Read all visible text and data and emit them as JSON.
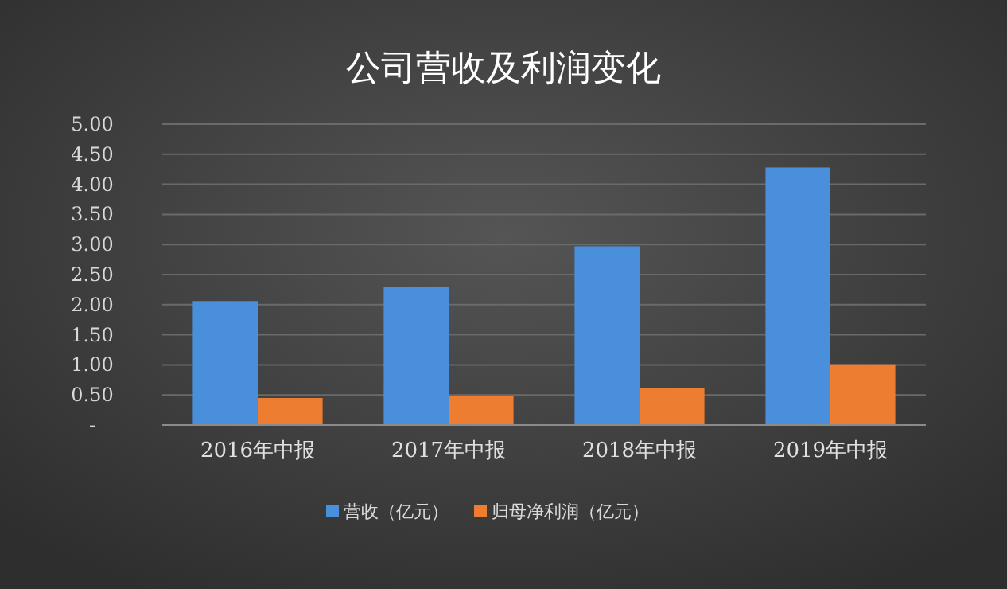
{
  "chart_data": {
    "type": "bar",
    "title": "公司营收及利润变化",
    "categories": [
      "2016年中报",
      "2017年中报",
      "2018年中报",
      "2019年中报"
    ],
    "series": [
      {
        "name": "营收（亿元）",
        "color": "#4a8fdc",
        "values": [
          2.06,
          2.3,
          2.97,
          4.28
        ]
      },
      {
        "name": "归母净利润（亿元）",
        "color": "#ed7d31",
        "values": [
          0.45,
          0.48,
          0.61,
          1.01
        ]
      }
    ],
    "ylim": [
      0,
      5
    ],
    "yticks": [
      {
        "value": 0,
        "label": "-"
      },
      {
        "value": 0.5,
        "label": "0.50"
      },
      {
        "value": 1,
        "label": "1.00"
      },
      {
        "value": 1.5,
        "label": "1.50"
      },
      {
        "value": 2,
        "label": "2.00"
      },
      {
        "value": 2.5,
        "label": "2.50"
      },
      {
        "value": 3,
        "label": "3.00"
      },
      {
        "value": 3.5,
        "label": "3.50"
      },
      {
        "value": 4,
        "label": "4.00"
      },
      {
        "value": 4.5,
        "label": "4.50"
      },
      {
        "value": 5,
        "label": "5.00"
      }
    ],
    "grid": "y",
    "legend": "bottom"
  }
}
